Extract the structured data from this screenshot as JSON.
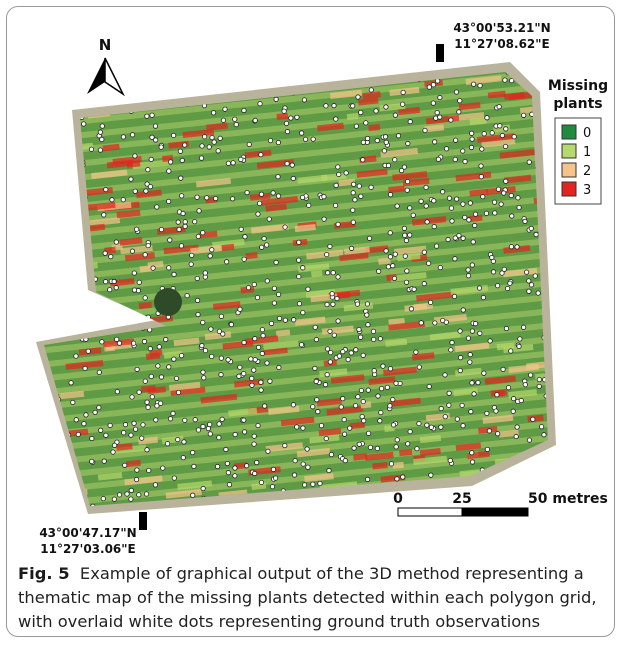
{
  "map": {
    "north_label": "N",
    "corner_top": {
      "lat": "43°00'53.21\"N",
      "lon": "11°27'08.62\"E"
    },
    "corner_bottom": {
      "lat": "43°00'47.17\"N",
      "lon": "11°27'03.06\"E"
    },
    "legend": {
      "title_lines": [
        "Missing",
        "plants"
      ],
      "items": [
        {
          "label": "0",
          "color": "#1e8c3c"
        },
        {
          "label": "1",
          "color": "#b5d96b"
        },
        {
          "label": "2",
          "color": "#f5c48a"
        },
        {
          "label": "3",
          "color": "#e3231e"
        }
      ]
    },
    "scale_bar": {
      "labels": [
        "0",
        "25",
        "50 metres"
      ]
    }
  },
  "caption": {
    "label": "Fig. 5",
    "text": "Example of graphical output of the 3D method representing a thematic map of the missing plants detected within each polygon grid, with overlaid white dots representing ground truth observations"
  }
}
